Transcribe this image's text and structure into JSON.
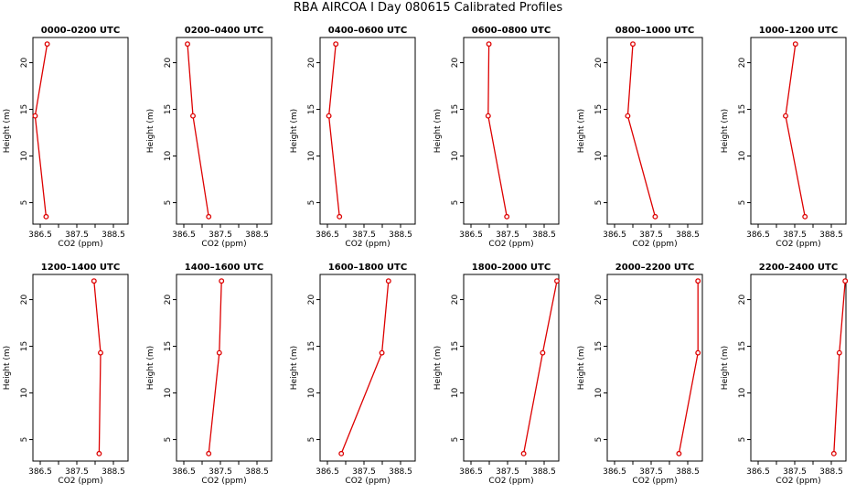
{
  "title": "RBA AIRCOA I  Day 080615  Calibrated Profiles",
  "colors": {
    "line": "#dd0000",
    "axis": "#000000",
    "background": "#ffffff"
  },
  "chart_data": [
    {
      "type": "line",
      "title": "0000–0200 UTC",
      "xlabel": "CO2 (ppm)",
      "ylabel": "Height (m)",
      "xlim": [
        386.3,
        388.9
      ],
      "ylim": [
        2.7,
        22.7
      ],
      "xticks": [
        386.5,
        387.5,
        388.5
      ],
      "yticks": [
        5,
        10,
        15,
        20
      ],
      "series": [
        {
          "x": [
            386.69,
            386.36,
            386.66
          ],
          "y": [
            22.0,
            14.3,
            3.5
          ]
        }
      ]
    },
    {
      "type": "line",
      "title": "0200–0400 UTC",
      "xlabel": "CO2 (ppm)",
      "ylabel": "Height (m)",
      "xlim": [
        386.3,
        388.9
      ],
      "ylim": [
        2.7,
        22.7
      ],
      "xticks": [
        386.5,
        387.5,
        388.5
      ],
      "yticks": [
        5,
        10,
        15,
        20
      ],
      "series": [
        {
          "x": [
            386.6,
            386.75,
            387.18
          ],
          "y": [
            22.0,
            14.3,
            3.5
          ]
        }
      ]
    },
    {
      "type": "line",
      "title": "0400–0600 UTC",
      "xlabel": "CO2 (ppm)",
      "ylabel": "Height (m)",
      "xlim": [
        386.3,
        388.9
      ],
      "ylim": [
        2.7,
        22.7
      ],
      "xticks": [
        386.5,
        387.5,
        388.5
      ],
      "yticks": [
        5,
        10,
        15,
        20
      ],
      "series": [
        {
          "x": [
            386.73,
            386.54,
            386.83
          ],
          "y": [
            22.0,
            14.3,
            3.5
          ]
        }
      ]
    },
    {
      "type": "line",
      "title": "0600–0800 UTC",
      "xlabel": "CO2 (ppm)",
      "ylabel": "Height (m)",
      "xlim": [
        386.3,
        388.9
      ],
      "ylim": [
        2.7,
        22.7
      ],
      "xticks": [
        386.5,
        387.5,
        388.5
      ],
      "yticks": [
        5,
        10,
        15,
        20
      ],
      "series": [
        {
          "x": [
            386.99,
            386.97,
            387.48
          ],
          "y": [
            22.0,
            14.3,
            3.5
          ]
        }
      ]
    },
    {
      "type": "line",
      "title": "0800–1000 UTC",
      "xlabel": "CO2 (ppm)",
      "ylabel": "Height (m)",
      "xlim": [
        386.3,
        388.9
      ],
      "ylim": [
        2.7,
        22.7
      ],
      "xticks": [
        386.5,
        387.5,
        388.5
      ],
      "yticks": [
        5,
        10,
        15,
        20
      ],
      "series": [
        {
          "x": [
            387.0,
            386.86,
            387.61
          ],
          "y": [
            22.0,
            14.3,
            3.5
          ]
        }
      ]
    },
    {
      "type": "line",
      "title": "1000–1200 UTC",
      "xlabel": "CO2 (ppm)",
      "ylabel": "Height (m)",
      "xlim": [
        386.3,
        388.9
      ],
      "ylim": [
        2.7,
        22.7
      ],
      "xticks": [
        386.5,
        387.5,
        388.5
      ],
      "yticks": [
        5,
        10,
        15,
        20
      ],
      "series": [
        {
          "x": [
            387.52,
            387.25,
            387.78
          ],
          "y": [
            22.0,
            14.3,
            3.5
          ]
        }
      ]
    },
    {
      "type": "line",
      "title": "1200–1400 UTC",
      "xlabel": "CO2 (ppm)",
      "ylabel": "Height (m)",
      "xlim": [
        386.3,
        388.9
      ],
      "ylim": [
        2.7,
        22.7
      ],
      "xticks": [
        386.5,
        387.5,
        388.5
      ],
      "yticks": [
        5,
        10,
        15,
        20
      ],
      "series": [
        {
          "x": [
            387.97,
            388.15,
            388.11
          ],
          "y": [
            22.0,
            14.3,
            3.5
          ]
        }
      ]
    },
    {
      "type": "line",
      "title": "1400–1600 UTC",
      "xlabel": "CO2 (ppm)",
      "ylabel": "Height (m)",
      "xlim": [
        386.3,
        388.9
      ],
      "ylim": [
        2.7,
        22.7
      ],
      "xticks": [
        386.5,
        387.5,
        388.5
      ],
      "yticks": [
        5,
        10,
        15,
        20
      ],
      "series": [
        {
          "x": [
            387.53,
            387.47,
            387.18
          ],
          "y": [
            22.0,
            14.3,
            3.5
          ]
        }
      ]
    },
    {
      "type": "line",
      "title": "1600–1800 UTC",
      "xlabel": "CO2 (ppm)",
      "ylabel": "Height (m)",
      "xlim": [
        386.3,
        388.9
      ],
      "ylim": [
        2.7,
        22.7
      ],
      "xticks": [
        386.5,
        387.5,
        388.5
      ],
      "yticks": [
        5,
        10,
        15,
        20
      ],
      "series": [
        {
          "x": [
            388.17,
            387.99,
            386.88
          ],
          "y": [
            22.0,
            14.3,
            3.5
          ]
        }
      ]
    },
    {
      "type": "line",
      "title": "1800–2000 UTC",
      "xlabel": "CO2 (ppm)",
      "ylabel": "Height (m)",
      "xlim": [
        386.3,
        388.9
      ],
      "ylim": [
        2.7,
        22.7
      ],
      "xticks": [
        386.5,
        387.5,
        388.5
      ],
      "yticks": [
        5,
        10,
        15,
        20
      ],
      "series": [
        {
          "x": [
            388.85,
            388.46,
            387.94
          ],
          "y": [
            22.0,
            14.3,
            3.5
          ]
        }
      ]
    },
    {
      "type": "line",
      "title": "2000–2200 UTC",
      "xlabel": "CO2 (ppm)",
      "ylabel": "Height (m)",
      "xlim": [
        386.3,
        388.9
      ],
      "ylim": [
        2.7,
        22.7
      ],
      "xticks": [
        386.5,
        387.5,
        388.5
      ],
      "yticks": [
        5,
        10,
        15,
        20
      ],
      "series": [
        {
          "x": [
            388.78,
            388.78,
            388.26
          ],
          "y": [
            22.0,
            14.3,
            3.5
          ]
        }
      ]
    },
    {
      "type": "line",
      "title": "2200–2400 UTC",
      "xlabel": "CO2 (ppm)",
      "ylabel": "Height (m)",
      "xlim": [
        386.3,
        388.9
      ],
      "ylim": [
        2.7,
        22.7
      ],
      "xticks": [
        386.5,
        387.5,
        388.5
      ],
      "yticks": [
        5,
        10,
        15,
        20
      ],
      "series": [
        {
          "x": [
            388.88,
            388.72,
            388.57
          ],
          "y": [
            22.0,
            14.3,
            3.5
          ]
        }
      ]
    }
  ]
}
